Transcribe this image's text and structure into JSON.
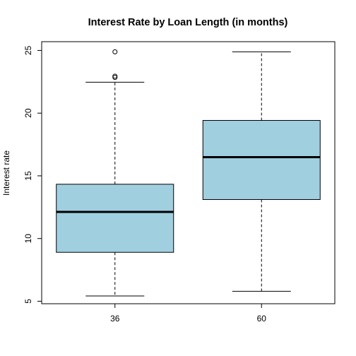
{
  "chart_data": {
    "type": "box",
    "title": "Interest Rate by Loan Length (in months)",
    "xlabel": "",
    "ylabel": "Interest rate",
    "ylim": [
      4.8,
      25.7
    ],
    "yticks": [
      5,
      10,
      15,
      20,
      25
    ],
    "categories": [
      "36",
      "60"
    ],
    "boxes": [
      {
        "category": "36",
        "whisker_low": 5.42,
        "q1": 8.9,
        "median": 12.12,
        "q3": 14.33,
        "whisker_high": 22.47,
        "outliers": [
          22.85,
          22.95,
          24.89
        ]
      },
      {
        "category": "60",
        "whisker_low": 5.79,
        "q1": 13.11,
        "median": 16.49,
        "q3": 19.42,
        "whisker_high": 24.89,
        "outliers": []
      }
    ],
    "box_fill": "#a0cfe0",
    "grid": false,
    "legend": "none"
  }
}
